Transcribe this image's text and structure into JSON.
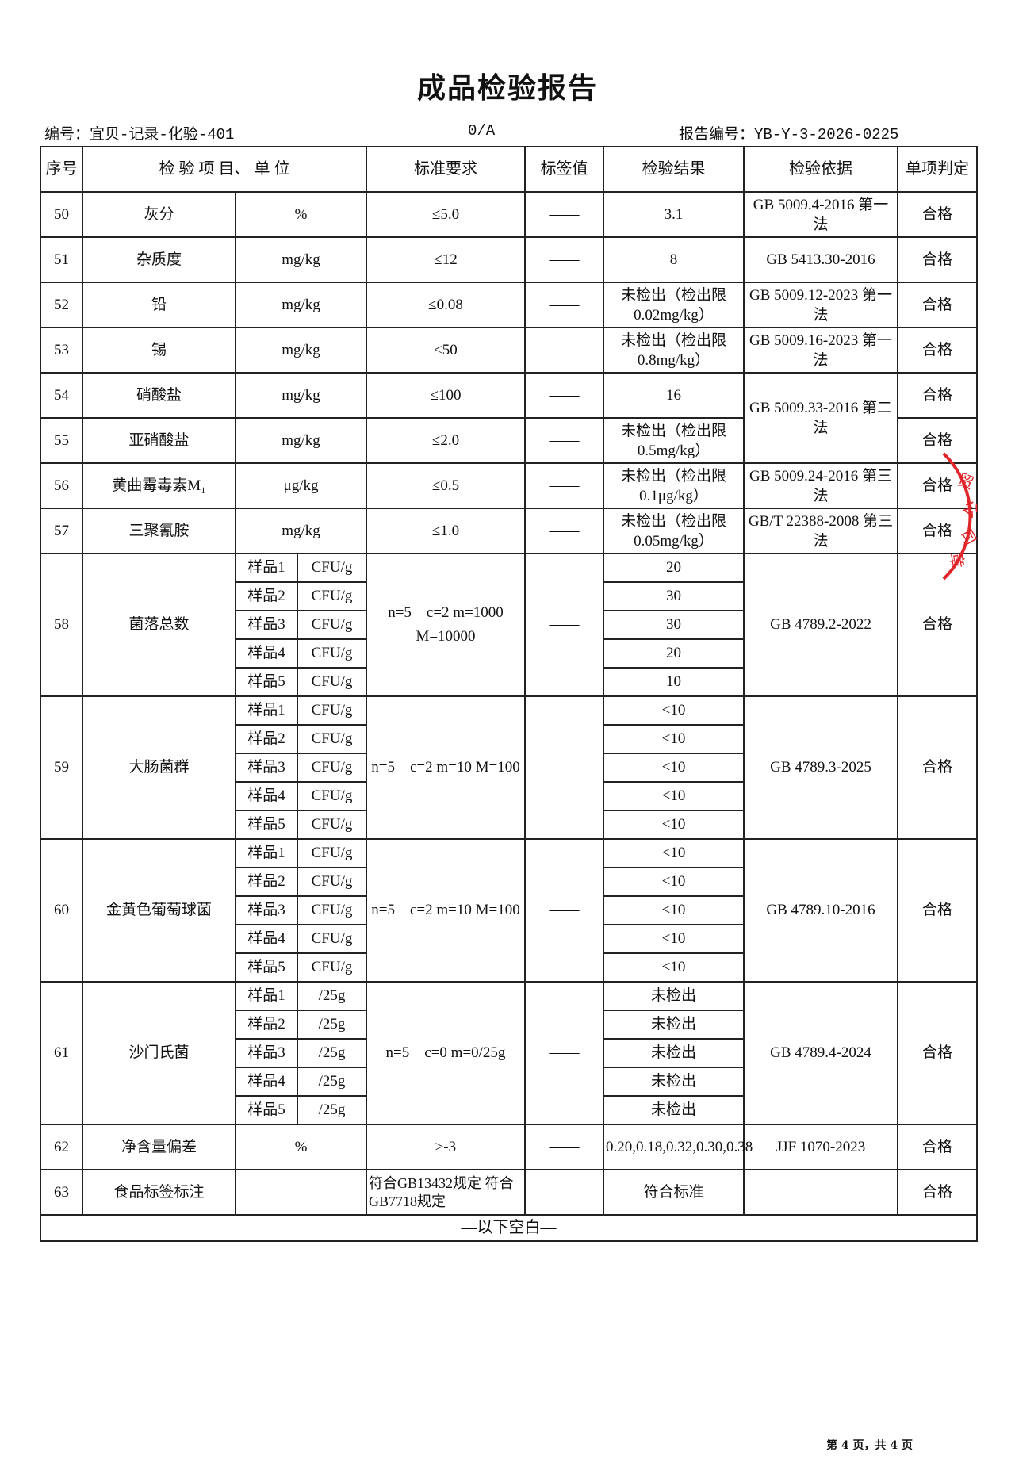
{
  "title": "成品检验报告",
  "doc_no": "编号：宜贝-记录-化验-401",
  "version": "0/A",
  "report_no": "报告编号：YB-Y-3-2026-0225",
  "headers": [
    "序号",
    "检 验 项 目、 单 位",
    "标准要求",
    "标签值",
    "检验结果",
    "检验依据",
    "单项判定"
  ],
  "rows": [
    {
      "no": "50",
      "item": "灰分",
      "unit": "%",
      "standard": "≤5.0",
      "label": "——",
      "result": "3.1",
      "basis": "GB 5009.4-2016 第一法",
      "verdict": "合格"
    },
    {
      "no": "51",
      "item": "杂质度",
      "unit": "mg/kg",
      "standard": "≤12",
      "label": "——",
      "result": "8",
      "basis": "GB 5413.30-2016",
      "verdict": "合格"
    },
    {
      "no": "52",
      "item": "铅",
      "unit": "mg/kg",
      "standard": "≤0.08",
      "label": "——",
      "result": "未检出（检出限 0.02mg/kg）",
      "basis": "GB 5009.12-2023 第一法",
      "verdict": "合格"
    },
    {
      "no": "53",
      "item": "锡",
      "unit": "mg/kg",
      "standard": "≤50",
      "label": "——",
      "result": "未检出（检出限 0.8mg/kg）",
      "basis": "GB 5009.16-2023 第一法",
      "verdict": "合格"
    },
    {
      "no": "54",
      "item": "硝酸盐",
      "unit": "mg/kg",
      "standard": "≤100",
      "label": "——",
      "result": "16",
      "basis": "GB 5009.33-2016 第二法",
      "basis_rowspan": 2,
      "verdict": "合格"
    },
    {
      "no": "55",
      "item": "亚硝酸盐",
      "unit": "mg/kg",
      "standard": "≤2.0",
      "label": "——",
      "result": "未检出（检出限 0.5mg/kg）",
      "verdict": "合格"
    },
    {
      "no": "56",
      "item": "黄曲霉毒素M₁",
      "unit": "μg/kg",
      "standard": "≤0.5",
      "label": "——",
      "result": "未检出（检出限 0.1μg/kg）",
      "basis": "GB 5009.24-2016 第三法",
      "verdict": "合格"
    },
    {
      "no": "57",
      "item": "三聚氰胺",
      "unit": "mg/kg",
      "standard": "≤1.0",
      "label": "——",
      "result": "未检出（检出限 0.05mg/kg）",
      "basis": "GB/T 22388-2008 第三法",
      "verdict": "合格"
    },
    {
      "no": "58",
      "item": "菌落总数",
      "standard": "n=5　c=2 m=1000 M=10000",
      "label": "——",
      "basis": "GB 4789.2-2022",
      "verdict": "合格",
      "samples": [
        {
          "s": "样品1",
          "u": "CFU/g",
          "r": "20"
        },
        {
          "s": "样品2",
          "u": "CFU/g",
          "r": "30"
        },
        {
          "s": "样品3",
          "u": "CFU/g",
          "r": "30"
        },
        {
          "s": "样品4",
          "u": "CFU/g",
          "r": "20"
        },
        {
          "s": "样品5",
          "u": "CFU/g",
          "r": "10"
        }
      ]
    },
    {
      "no": "59",
      "item": "大肠菌群",
      "standard": "n=5　c=2 m=10 M=100",
      "label": "——",
      "basis": "GB 4789.3-2025",
      "verdict": "合格",
      "samples": [
        {
          "s": "样品1",
          "u": "CFU/g",
          "r": "<10"
        },
        {
          "s": "样品2",
          "u": "CFU/g",
          "r": "<10"
        },
        {
          "s": "样品3",
          "u": "CFU/g",
          "r": "<10"
        },
        {
          "s": "样品4",
          "u": "CFU/g",
          "r": "<10"
        },
        {
          "s": "样品5",
          "u": "CFU/g",
          "r": "<10"
        }
      ]
    },
    {
      "no": "60",
      "item": "金黄色葡萄球菌",
      "standard": "n=5　c=2 m=10 M=100",
      "label": "——",
      "basis": "GB 4789.10-2016",
      "verdict": "合格",
      "samples": [
        {
          "s": "样品1",
          "u": "CFU/g",
          "r": "<10"
        },
        {
          "s": "样品2",
          "u": "CFU/g",
          "r": "<10"
        },
        {
          "s": "样品3",
          "u": "CFU/g",
          "r": "<10"
        },
        {
          "s": "样品4",
          "u": "CFU/g",
          "r": "<10"
        },
        {
          "s": "样品5",
          "u": "CFU/g",
          "r": "<10"
        }
      ]
    },
    {
      "no": "61",
      "item": "沙门氏菌",
      "standard": "n=5　c=0 m=0/25g",
      "label": "——",
      "basis": "GB 4789.4-2024",
      "verdict": "合格",
      "samples": [
        {
          "s": "样品1",
          "u": "/25g",
          "r": "未检出"
        },
        {
          "s": "样品2",
          "u": "/25g",
          "r": "未检出"
        },
        {
          "s": "样品3",
          "u": "/25g",
          "r": "未检出"
        },
        {
          "s": "样品4",
          "u": "/25g",
          "r": "未检出"
        },
        {
          "s": "样品5",
          "u": "/25g",
          "r": "未检出"
        }
      ]
    },
    {
      "no": "62",
      "item": "净含量偏差",
      "unit": "%",
      "standard": "≥-3",
      "label": "——",
      "result": "0.20,0.18,0.32,0.30,0.38",
      "basis": "JJF 1070-2023",
      "verdict": "合格"
    },
    {
      "no": "63",
      "item": "食品标签标注",
      "unit": "——",
      "standard": "符合GB13432规定 符合GB7718规定",
      "standard_left": true,
      "label": "——",
      "result": "符合标准",
      "basis": "——",
      "verdict": "合格"
    }
  ],
  "footer_note": "—以下空白—",
  "page_info": "第 4 页，共 4 页",
  "stamp_color": "#e0262b"
}
